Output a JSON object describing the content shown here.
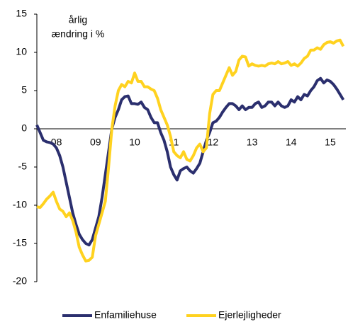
{
  "chart_data": {
    "type": "line",
    "annotation": [
      "årlig",
      "ændring i %"
    ],
    "categories": [
      null,
      null,
      null,
      null,
      null,
      null,
      "08",
      null,
      null,
      null,
      null,
      null,
      null,
      null,
      null,
      null,
      null,
      null,
      "09",
      null,
      null,
      null,
      null,
      null,
      null,
      null,
      null,
      null,
      null,
      null,
      "10",
      null,
      null,
      null,
      null,
      null,
      null,
      null,
      null,
      null,
      null,
      null,
      "11",
      null,
      null,
      null,
      null,
      null,
      null,
      null,
      null,
      null,
      null,
      null,
      "12",
      null,
      null,
      null,
      null,
      null,
      null,
      null,
      null,
      null,
      null,
      null,
      "13",
      null,
      null,
      null,
      null,
      null,
      null,
      null,
      null,
      null,
      null,
      null,
      "14",
      null,
      null,
      null,
      null,
      null,
      null,
      null,
      null,
      null,
      null,
      null,
      "15",
      null,
      null,
      null,
      null
    ],
    "series": [
      {
        "name": "Enfamiliehuse",
        "color": "#2b2f6e",
        "values": [
          0.5,
          -0.5,
          -1.5,
          -1.7,
          -1.8,
          -2,
          -2.5,
          -3.5,
          -5,
          -7,
          -9,
          -11,
          -12.5,
          -13.8,
          -14.5,
          -15,
          -15.2,
          -14.5,
          -13,
          -11.5,
          -9,
          -6,
          -3,
          0,
          1.5,
          2.5,
          3.8,
          4.2,
          4.3,
          3.3,
          3.3,
          3.2,
          3.5,
          2.8,
          2.5,
          1.5,
          0.8,
          0.8,
          -0.5,
          -1.5,
          -3,
          -5,
          -6,
          -6.7,
          -5.5,
          -5.2,
          -5,
          -5.5,
          -5.8,
          -5.2,
          -4.5,
          -3,
          -1.5,
          -0.5,
          0.8,
          1,
          1.5,
          2.2,
          2.8,
          3.3,
          3.3,
          3,
          2.5,
          3,
          2.5,
          2.8,
          2.8,
          3.3,
          3.5,
          2.8,
          3,
          3.5,
          3.5,
          3,
          3.5,
          3,
          2.8,
          3,
          3.8,
          3.5,
          4.2,
          3.8,
          4.5,
          4.3,
          5,
          5.5,
          6.3,
          6.6,
          6,
          6.4,
          6.2,
          5.8,
          5.2,
          4.5,
          3.8
        ]
      },
      {
        "name": "Ejerlejligheder",
        "color": "#ffd21f",
        "values": [
          -10.2,
          -10.3,
          -9.8,
          -9.2,
          -8.8,
          -8.3,
          -9.5,
          -10.5,
          -10.8,
          -11.5,
          -11,
          -12,
          -13.5,
          -15.5,
          -16.5,
          -17.3,
          -17.2,
          -16.8,
          -14,
          -12.5,
          -11,
          -9.5,
          -5,
          0,
          3,
          5,
          5.8,
          5.5,
          6.2,
          6,
          7.3,
          6.2,
          6.2,
          5.5,
          5.5,
          5.2,
          5,
          4,
          2.5,
          1.5,
          0.5,
          -1,
          -3,
          -3.5,
          -3.8,
          -3,
          -4,
          -4.2,
          -3.5,
          -2.5,
          -2,
          -3,
          -2.5,
          2,
          4.5,
          5,
          5,
          6,
          7,
          8,
          7,
          7.5,
          9,
          9.5,
          9.4,
          8.2,
          8.5,
          8.3,
          8.2,
          8.3,
          8.2,
          8.5,
          8.6,
          8.5,
          8.8,
          8.5,
          8.6,
          8.8,
          8.3,
          8.5,
          8.2,
          8.6,
          9.2,
          9.5,
          10.3,
          10.3,
          10.6,
          10.4,
          11,
          11.3,
          11.4,
          11.2,
          11.5,
          11.6,
          10.8
        ]
      }
    ],
    "ylim": [
      -20,
      15
    ],
    "yticks": [
      -20,
      -15,
      -10,
      -5,
      0,
      5,
      10,
      15
    ]
  }
}
